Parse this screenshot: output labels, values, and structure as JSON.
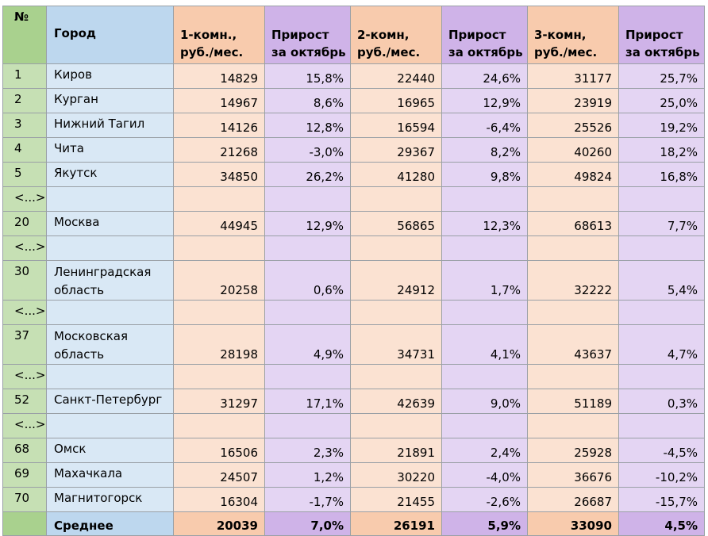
{
  "headers": {
    "num": "№",
    "city": "Город",
    "c1": [
      "1-комн.,",
      "руб./мес."
    ],
    "g1": [
      "Прирост",
      "за октябрь"
    ],
    "c2": [
      "2-комн,",
      "руб./мес."
    ],
    "g2": [
      "Прирост",
      "за октябрь"
    ],
    "c3": [
      "3-комн,",
      "руб./мес."
    ],
    "g3": [
      "Прирост",
      "за октябрь"
    ]
  },
  "rows": [
    {
      "num": "1",
      "city": "Киров",
      "c1": "14829",
      "g1": "15,8%",
      "c2": "22440",
      "g2": "24,6%",
      "c3": "31177",
      "g3": "25,7%"
    },
    {
      "num": "2",
      "city": "Курган",
      "c1": "14967",
      "g1": "8,6%",
      "c2": "16965",
      "g2": "12,9%",
      "c3": "23919",
      "g3": "25,0%"
    },
    {
      "num": "3",
      "city": "Нижний Тагил",
      "c1": "14126",
      "g1": "12,8%",
      "c2": "16594",
      "g2": "-6,4%",
      "c3": "25526",
      "g3": "19,2%"
    },
    {
      "num": "4",
      "city": "Чита",
      "c1": "21268",
      "g1": "-3,0%",
      "c2": "29367",
      "g2": "8,2%",
      "c3": "40260",
      "g3": "18,2%"
    },
    {
      "num": "5",
      "city": "Якутск",
      "c1": "34850",
      "g1": "26,2%",
      "c2": "41280",
      "g2": "9,8%",
      "c3": "49824",
      "g3": "16,8%"
    },
    {
      "num": "<...>"
    },
    {
      "num": "20",
      "city": "Москва",
      "c1": "44945",
      "g1": "12,9%",
      "c2": "56865",
      "g2": "12,3%",
      "c3": "68613",
      "g3": "7,7%"
    },
    {
      "num": "<...>"
    },
    {
      "num": "30",
      "city": "Ленинградская область",
      "c1": "20258",
      "g1": "0,6%",
      "c2": "24912",
      "g2": "1,7%",
      "c3": "32222",
      "g3": "5,4%"
    },
    {
      "num": "<...>"
    },
    {
      "num": "37",
      "city": "Московская область",
      "c1": "28198",
      "g1": "4,9%",
      "c2": "34731",
      "g2": "4,1%",
      "c3": "43637",
      "g3": "4,7%"
    },
    {
      "num": "<...>"
    },
    {
      "num": "52",
      "city": "Санкт-Петербург",
      "c1": "31297",
      "g1": "17,1%",
      "c2": "42639",
      "g2": "9,0%",
      "c3": "51189",
      "g3": "0,3%"
    },
    {
      "num": "<...>"
    },
    {
      "num": "68",
      "city": "Омск",
      "c1": "16506",
      "g1": "2,3%",
      "c2": "21891",
      "g2": "2,4%",
      "c3": "25928",
      "g3": "-4,5%"
    },
    {
      "num": "69",
      "city": "Махачкала",
      "c1": "24507",
      "g1": "1,2%",
      "c2": "30220",
      "g2": "-4,0%",
      "c3": "36676",
      "g3": "-10,2%"
    },
    {
      "num": "70",
      "city": "Магнитогорск",
      "c1": "16304",
      "g1": "-1,7%",
      "c2": "21455",
      "g2": "-2,6%",
      "c3": "26687",
      "g3": "-15,7%"
    }
  ],
  "average": {
    "num": "",
    "city": "Среднее",
    "c1": "20039",
    "g1": "7,0%",
    "c2": "26191",
    "g2": "5,9%",
    "c3": "33090",
    "g3": "4,5%"
  }
}
